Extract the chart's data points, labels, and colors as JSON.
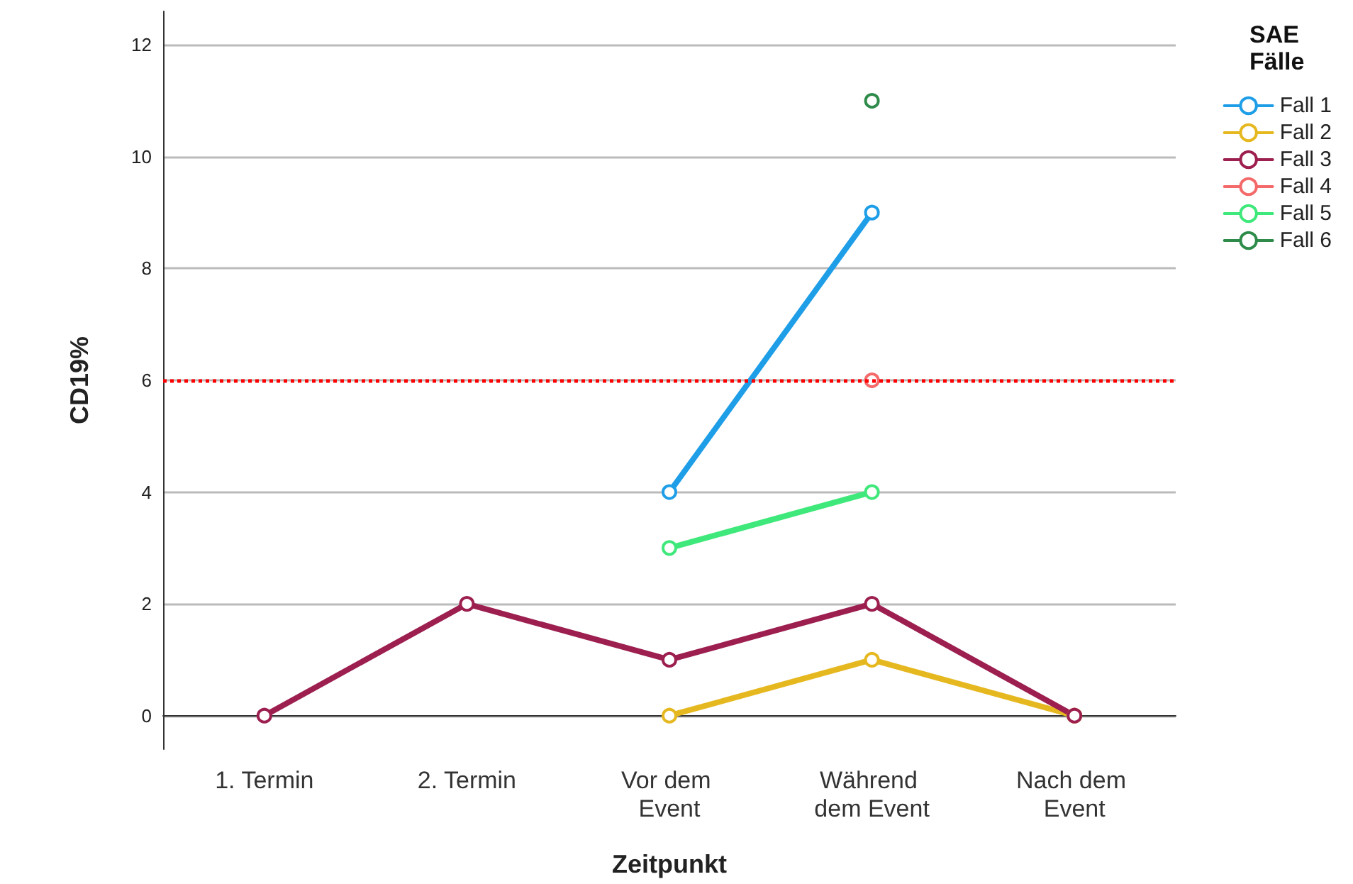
{
  "chart_data": {
    "type": "line",
    "xlabel": "Zeitpunkt",
    "ylabel": "CD19%",
    "legend_title": "SAE Fälle",
    "categories": [
      "1. Termin",
      "2. Termin",
      "Vor dem Event",
      "Während dem Event",
      "Nach dem Event"
    ],
    "series": [
      {
        "name": "Fall 1",
        "color": "#1f9ee8",
        "values": [
          null,
          null,
          4,
          9,
          null
        ]
      },
      {
        "name": "Fall 2",
        "color": "#e6b820",
        "values": [
          null,
          null,
          0,
          1,
          0
        ]
      },
      {
        "name": "Fall 3",
        "color": "#9c1f4f",
        "values": [
          0,
          2,
          1,
          2,
          0
        ]
      },
      {
        "name": "Fall 4",
        "color": "#f46a6a",
        "values": [
          null,
          null,
          null,
          6,
          null
        ]
      },
      {
        "name": "Fall 5",
        "color": "#3ee87a",
        "values": [
          null,
          null,
          3,
          4,
          null
        ]
      },
      {
        "name": "Fall 6",
        "color": "#2e8b4a",
        "values": [
          null,
          null,
          null,
          11,
          null
        ]
      }
    ],
    "ylim": [
      -0.6,
      12.6
    ],
    "yticks": [
      0,
      2,
      4,
      6,
      8,
      10,
      12
    ],
    "ref_lines": [
      {
        "axis": "y",
        "value": 6,
        "color": "#ff0000",
        "line_style": "dotted"
      }
    ],
    "grid": "y",
    "legend": "right",
    "marker": "circle",
    "line_style": "solid"
  }
}
